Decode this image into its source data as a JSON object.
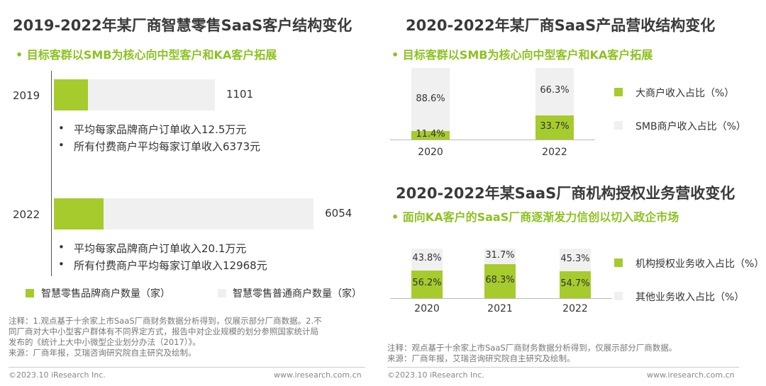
{
  "colors": {
    "brand": "#a6cb2d",
    "other": "#f0f0f0",
    "subtitle": "#8cc220"
  },
  "left": {
    "title": "2019-2022年某厂商智慧零售SaaS客户结构变化",
    "subtitle": "• 目标客群以SMB为核心向中型客户和KA客户拓展",
    "legend": [
      "智慧零售品牌商户数量（家）",
      "智慧零售普通商户数量（家）"
    ],
    "note": [
      "注释：1.观点基于十余家上市SaaS厂商财务数据分析得到，仅展示部分厂商数据。2.不",
      "同厂商对大中小型客户群体有不同界定方式，报告中对企业规模的划分参照国家统计局",
      "发布的《统计上大中小微型企业划分办法（2017）》。",
      "来源：厂商年报，艾瑞咨询研究院自主研究及绘制。"
    ],
    "copyright": "©2023.10 iResearch Inc.",
    "website": "www.iresearch.com.cn"
  },
  "chart_data": [
    {
      "type": "bar",
      "orientation": "horizontal",
      "stacked": true,
      "categories": [
        "2019",
        "2022"
      ],
      "totals": [
        1101,
        6054
      ],
      "brand_share_est": [
        0.21,
        0.19
      ],
      "series": [
        {
          "name": "智慧零售品牌商户数量（家）"
        },
        {
          "name": "智慧零售普通商户数量（家）"
        }
      ],
      "annotations": [
        [
          "平均每家品牌商户订单收入12.5万元",
          "所有付费商户平均每家订单收入6373元"
        ],
        [
          "平均每家品牌商户订单收入20.1万元",
          "所有付费商户平均每家订单收入12968元"
        ]
      ]
    },
    {
      "type": "bar",
      "stacked": true,
      "percent": true,
      "title": "2020-2022年某厂商SaaS产品营收结构变化",
      "subtitle": "• 目标客群以SMB为核心向中型客户和KA客户拓展",
      "categories": [
        "2020",
        "2022"
      ],
      "series": [
        {
          "name": "大商户收入占比（%）",
          "values": [
            11.4,
            33.7
          ],
          "labels": [
            "11.4%",
            "33.7%"
          ]
        },
        {
          "name": "SMB商户收入占比（%）",
          "values": [
            88.6,
            66.3
          ],
          "labels": [
            "88.6%",
            "66.3%"
          ]
        }
      ]
    },
    {
      "type": "bar",
      "stacked": true,
      "percent": true,
      "title": "2020-2022年某SaaS厂商机构授权业务营收变化",
      "subtitle": "• 面向KA客户的SaaS厂商逐渐发力信创以切入政企市场",
      "categories": [
        "2020",
        "2021",
        "2022"
      ],
      "series": [
        {
          "name": "机构授权业务收入占比（%）",
          "values": [
            56.2,
            68.3,
            54.7
          ],
          "labels": [
            "56.2%",
            "68.3%",
            "54.7%"
          ]
        },
        {
          "name": "其他业务收入占比（%）",
          "values": [
            43.8,
            31.7,
            45.3
          ],
          "labels": [
            "43.8%",
            "31.7%",
            "45.3%"
          ]
        }
      ]
    }
  ],
  "right": {
    "note": [
      "注释：观点基于十余家上市SaaS厂商财务数据分析得到，仅展示部分厂商数据。",
      "来源：厂商年报，艾瑞咨询研究院自主研究及绘制。"
    ],
    "copyright": "©2023.10 iResearch Inc.",
    "website": "www.iresearch.com.cn"
  }
}
